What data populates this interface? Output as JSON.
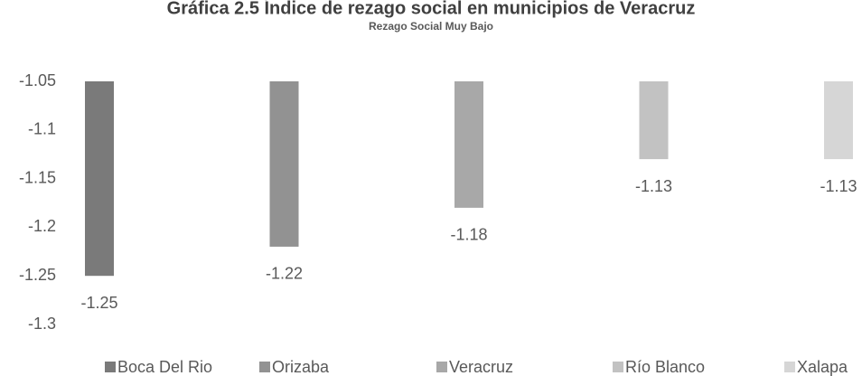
{
  "chart_data": {
    "type": "bar",
    "title": "Gráfica 2.5 Índice de rezago social en municipios de Veracruz",
    "subtitle": "Rezago Social Muy Bajo",
    "categories": [
      null
    ],
    "series": [
      {
        "name": "Boca Del Rio",
        "color": "#7a7a7a",
        "values": [
          -1.25
        ]
      },
      {
        "name": "Orizaba",
        "color": "#929292",
        "values": [
          -1.22
        ]
      },
      {
        "name": "Veracruz",
        "color": "#a8a8a8",
        "values": [
          -1.18
        ]
      },
      {
        "name": "Río Blanco",
        "color": "#c2c2c2",
        "values": [
          -1.13
        ]
      },
      {
        "name": "Xalapa",
        "color": "#d6d6d6",
        "values": [
          -1.13
        ]
      }
    ],
    "ylim": [
      -1.3,
      -1.05
    ],
    "yticks": [
      -1.05,
      -1.1,
      -1.15,
      -1.2,
      -1.25,
      -1.3
    ],
    "grid": false,
    "legend": "bottom"
  }
}
